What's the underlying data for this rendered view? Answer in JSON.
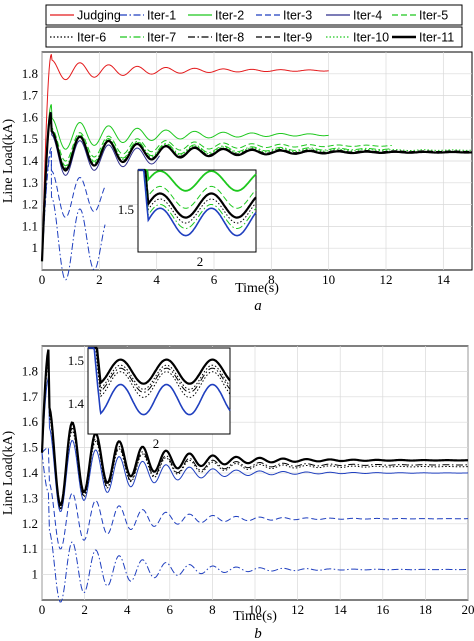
{
  "chart_data": [
    {
      "type": "line",
      "caption": "a",
      "xlabel": "Time(s)",
      "ylabel": "Line Load(kA)",
      "xlim": [
        0,
        15
      ],
      "ylim": [
        0.9,
        1.9
      ],
      "xticks": [
        "0",
        "2",
        "4",
        "6",
        "8",
        "10",
        "12",
        "14"
      ],
      "yticks": [
        "1",
        "1.1",
        "1.2",
        "1.3",
        "1.4",
        "1.5",
        "1.6",
        "1.7",
        "1.8"
      ],
      "grid": true,
      "legend": {
        "placement": "top-outside",
        "entries": [
          {
            "label": "Judging",
            "color": "#e41a1c",
            "dash": "solid"
          },
          {
            "label": "Iter-1",
            "color": "#1f3fbf",
            "dash": "dashdot"
          },
          {
            "label": "Iter-2",
            "color": "#1ec81e",
            "dash": "solid"
          },
          {
            "label": "Iter-3",
            "color": "#1f3fbf",
            "dash": "dashed"
          },
          {
            "label": "Iter-4",
            "color": "#2e2e8c",
            "dash": "solid"
          },
          {
            "label": "Iter-5",
            "color": "#1ec81e",
            "dash": "dashed"
          },
          {
            "label": "Iter-6",
            "color": "#000000",
            "dash": "dotted"
          },
          {
            "label": "Iter-7",
            "color": "#1ec81e",
            "dash": "dashdot"
          },
          {
            "label": "Iter-8",
            "color": "#000000",
            "dash": "dashdot"
          },
          {
            "label": "Iter-9",
            "color": "#000000",
            "dash": "dashed"
          },
          {
            "label": "Iter-10",
            "color": "#1ec81e",
            "dash": "dotted"
          },
          {
            "label": "Iter-11",
            "color": "#000000",
            "dash": "solid",
            "bold": true
          }
        ]
      },
      "series": [
        {
          "name": "Judging",
          "x_end": 10,
          "final": 1.815,
          "amplitude": 0.075,
          "period": 1.0
        },
        {
          "name": "Iter-1",
          "x_end": 2.2,
          "final": 1.03,
          "amplitude": 0.1,
          "period": 1.0
        },
        {
          "name": "Iter-2",
          "x_end": 10,
          "final": 1.52,
          "amplitude": 0.07,
          "period": 1.0
        },
        {
          "name": "Iter-3",
          "x_end": 2.2,
          "final": 1.24,
          "amplitude": 0.08,
          "period": 1.0
        },
        {
          "name": "Iter-4",
          "x_end": 4.1,
          "final": 1.42,
          "amplitude": 0.05,
          "period": 1.0
        },
        {
          "name": "Iter-5",
          "x_end": 12.2,
          "final": 1.47,
          "amplitude": 0.05,
          "period": 1.0
        },
        {
          "name": "Iter-6",
          "x_end": 15,
          "final": 1.44,
          "amplitude": 0.055,
          "period": 1.0
        },
        {
          "name": "Iter-7",
          "x_end": 12.2,
          "final": 1.455,
          "amplitude": 0.055,
          "period": 1.0
        },
        {
          "name": "Iter-8",
          "x_end": 15,
          "final": 1.438,
          "amplitude": 0.055,
          "period": 1.0
        },
        {
          "name": "Iter-9",
          "x_end": 15,
          "final": 1.445,
          "amplitude": 0.055,
          "period": 1.0
        },
        {
          "name": "Iter-10",
          "x_end": 15,
          "final": 1.45,
          "amplitude": 0.06,
          "period": 1.0
        },
        {
          "name": "Iter-11",
          "x_end": 15,
          "final": 1.44,
          "amplitude": 0.06,
          "period": 1.0
        }
      ],
      "inset": {
        "ytick": "1.5",
        "xtick": "2"
      }
    },
    {
      "type": "line",
      "caption": "b",
      "xlabel": "Time(s)",
      "ylabel": "Line Load(kA)",
      "xlim": [
        0,
        20
      ],
      "ylim": [
        0.9,
        1.9
      ],
      "xticks": [
        "0",
        "2",
        "4",
        "6",
        "8",
        "10",
        "12",
        "14",
        "16",
        "18",
        "20"
      ],
      "yticks": [
        "1",
        "1.1",
        "1.2",
        "1.3",
        "1.4",
        "1.5",
        "1.6",
        "1.7",
        "1.8"
      ],
      "grid": true,
      "series": [
        {
          "name": "",
          "style": "dashdot-blue",
          "final": 1.02,
          "amplitude": 0.09,
          "period": 1.1
        },
        {
          "name": "",
          "style": "dashed-blue",
          "final": 1.22,
          "amplitude": 0.08,
          "period": 1.1
        },
        {
          "name": "",
          "style": "solid-blue",
          "final": 1.4,
          "amplitude": 0.05,
          "period": 1.1
        },
        {
          "name": "",
          "style": "dotted-black",
          "final": 1.425,
          "amplitude": 0.055,
          "period": 1.1
        },
        {
          "name": "",
          "style": "dashdot-black",
          "final": 1.432,
          "amplitude": 0.055,
          "period": 1.1
        },
        {
          "name": "",
          "style": "solid-black-bold",
          "final": 1.45,
          "amplitude": 0.06,
          "period": 1.1
        }
      ],
      "inset": {
        "yticks": [
          "1.5",
          "1.4"
        ],
        "xtick": "2"
      }
    }
  ]
}
